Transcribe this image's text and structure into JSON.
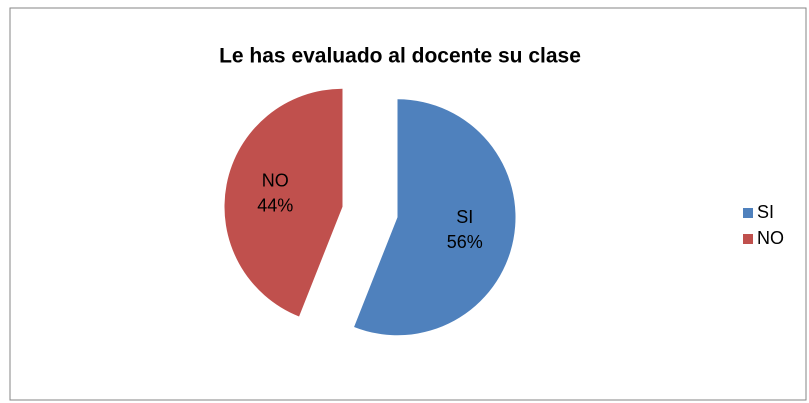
{
  "chart_data": {
    "type": "pie",
    "title": "Le has evaluado al docente su clase",
    "categories": [
      "SI",
      "NO"
    ],
    "values": [
      56,
      44
    ],
    "value_labels": [
      "56%",
      "44%"
    ],
    "colors": [
      "#4f81bd",
      "#c0504d"
    ],
    "legend": "right"
  }
}
